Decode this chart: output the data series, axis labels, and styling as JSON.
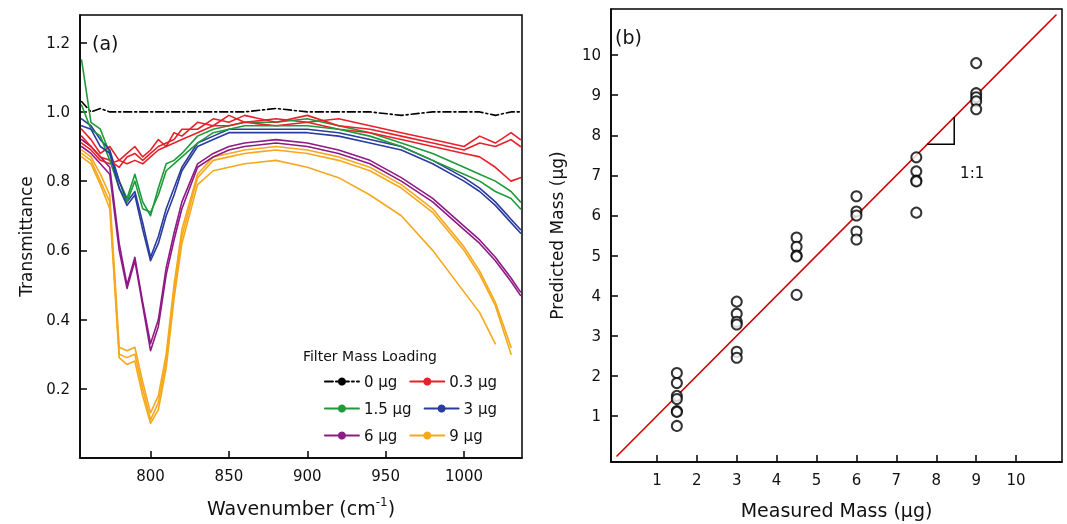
{
  "chart_data": [
    {
      "type": "line",
      "xlabel": "Wavenumber (cm$^{-1}$)",
      "ylabel": "Transmittance",
      "legend_title": "Filter Mass Loading",
      "annotations": [
        "(a)"
      ],
      "x": [
        756,
        762,
        768,
        774,
        780,
        785,
        790,
        795,
        800,
        805,
        810,
        815,
        820,
        830,
        840,
        850,
        860,
        880,
        900,
        920,
        940,
        960,
        980,
        1000,
        1010,
        1020,
        1030,
        1036
      ],
      "series": [
        {
          "name": "0 µg",
          "color": "#000000",
          "line_style": "dashed",
          "values": [
            1.03,
            1.0,
            1.01,
            1.0,
            1.0,
            1.0,
            1.0,
            1.0,
            1.0,
            1.0,
            1.0,
            1.0,
            1.0,
            1.0,
            1.0,
            1.0,
            1.0,
            1.01,
            1.0,
            1.0,
            1.0,
            0.99,
            1.0,
            1.0,
            1.0,
            0.99,
            1.0,
            1.0
          ]
        },
        {
          "name": "0.3 µg",
          "color": "#e8202a",
          "values": [
            0.95,
            0.92,
            0.88,
            0.9,
            0.86,
            0.88,
            0.9,
            0.87,
            0.89,
            0.92,
            0.9,
            0.94,
            0.93,
            0.97,
            0.96,
            0.99,
            0.97,
            0.98,
            0.97,
            0.98,
            0.96,
            0.94,
            0.92,
            0.9,
            0.93,
            0.91,
            0.94,
            0.92
          ]
        },
        {
          "name": "1.5 µg",
          "color": "#1f9a3a",
          "values": [
            1.15,
            0.97,
            0.95,
            0.88,
            0.8,
            0.75,
            0.82,
            0.74,
            0.7,
            0.78,
            0.85,
            0.86,
            0.88,
            0.93,
            0.95,
            0.96,
            0.97,
            0.97,
            0.98,
            0.96,
            0.94,
            0.91,
            0.88,
            0.84,
            0.82,
            0.8,
            0.77,
            0.74
          ]
        },
        {
          "name": "3 µg",
          "color": "#2a3c9e",
          "values": [
            0.98,
            0.96,
            0.92,
            0.89,
            0.8,
            0.74,
            0.77,
            0.68,
            0.58,
            0.64,
            0.72,
            0.78,
            0.84,
            0.91,
            0.93,
            0.95,
            0.95,
            0.95,
            0.95,
            0.94,
            0.92,
            0.9,
            0.86,
            0.81,
            0.78,
            0.74,
            0.69,
            0.66
          ]
        },
        {
          "name": "6 µg",
          "color": "#8e1a85",
          "values": [
            0.92,
            0.9,
            0.87,
            0.84,
            0.62,
            0.5,
            0.58,
            0.45,
            0.33,
            0.4,
            0.55,
            0.65,
            0.74,
            0.85,
            0.88,
            0.9,
            0.91,
            0.92,
            0.91,
            0.89,
            0.86,
            0.81,
            0.75,
            0.67,
            0.63,
            0.58,
            0.52,
            0.48
          ]
        },
        {
          "name": "9 µg",
          "color": "#f5a81c",
          "values": [
            0.89,
            0.87,
            0.82,
            0.76,
            0.32,
            0.31,
            0.32,
            0.22,
            0.13,
            0.18,
            0.3,
            0.5,
            0.66,
            0.82,
            0.87,
            0.88,
            0.89,
            0.9,
            0.89,
            0.87,
            0.84,
            0.79,
            0.72,
            0.61,
            0.54,
            0.45,
            0.32,
            null
          ]
        },
        {
          "color": "#e8202a",
          "values": [
            0.93,
            0.9,
            0.87,
            0.86,
            0.84,
            0.87,
            0.88,
            0.86,
            0.88,
            0.9,
            0.91,
            0.92,
            0.95,
            0.95,
            0.98,
            0.97,
            0.99,
            0.97,
            0.99,
            0.96,
            0.95,
            0.93,
            0.91,
            0.89,
            0.91,
            0.9,
            0.92,
            0.9
          ]
        },
        {
          "color": "#e8202a",
          "values": [
            0.91,
            0.89,
            0.86,
            0.85,
            0.86,
            0.85,
            0.86,
            0.85,
            0.87,
            0.89,
            0.9,
            0.91,
            0.92,
            0.94,
            0.96,
            0.96,
            0.97,
            0.96,
            0.97,
            0.95,
            0.94,
            0.92,
            0.9,
            0.88,
            0.87,
            0.84,
            0.8,
            0.81
          ]
        },
        {
          "color": "#1f9a3a",
          "values": [
            1.02,
            0.95,
            0.93,
            0.86,
            0.78,
            0.74,
            0.8,
            0.72,
            0.71,
            0.76,
            0.83,
            0.85,
            0.87,
            0.91,
            0.94,
            0.95,
            0.96,
            0.96,
            0.96,
            0.95,
            0.93,
            0.9,
            0.86,
            0.82,
            0.8,
            0.77,
            0.75,
            0.72
          ]
        },
        {
          "color": "#2a3c9e",
          "values": [
            0.96,
            0.95,
            0.9,
            0.88,
            0.78,
            0.73,
            0.76,
            0.66,
            0.57,
            0.62,
            0.7,
            0.76,
            0.83,
            0.9,
            0.92,
            0.94,
            0.94,
            0.94,
            0.94,
            0.93,
            0.91,
            0.89,
            0.85,
            0.8,
            0.77,
            0.73,
            0.68,
            0.65
          ]
        },
        {
          "color": "#8e1a85",
          "values": [
            0.9,
            0.88,
            0.85,
            0.82,
            0.6,
            0.49,
            0.57,
            0.44,
            0.31,
            0.38,
            0.53,
            0.63,
            0.72,
            0.84,
            0.87,
            0.89,
            0.9,
            0.91,
            0.9,
            0.88,
            0.85,
            0.8,
            0.74,
            0.66,
            0.62,
            0.57,
            0.51,
            0.47
          ]
        },
        {
          "color": "#f5a81c",
          "values": [
            0.88,
            0.86,
            0.8,
            0.74,
            0.3,
            0.29,
            0.3,
            0.2,
            0.11,
            0.16,
            0.28,
            0.48,
            0.64,
            0.81,
            0.86,
            0.87,
            0.88,
            0.89,
            0.88,
            0.86,
            0.83,
            0.78,
            0.71,
            0.6,
            0.53,
            0.44,
            0.3,
            null
          ]
        },
        {
          "color": "#f5a81c",
          "values": [
            0.87,
            0.85,
            0.79,
            0.72,
            0.29,
            0.27,
            0.28,
            0.18,
            0.1,
            0.14,
            0.26,
            0.46,
            0.62,
            0.79,
            0.83,
            0.84,
            0.85,
            0.86,
            0.84,
            0.81,
            0.76,
            0.7,
            0.6,
            0.48,
            0.42,
            0.33,
            null,
            null
          ]
        }
      ],
      "xlim": [
        755,
        1037
      ],
      "xticks": [
        800,
        850,
        900,
        950,
        1000
      ],
      "ylim": [
        0,
        1.28
      ],
      "yticks": [
        0.2,
        0.4,
        0.6,
        0.8,
        {
          "value": 1.0,
          "label": "1.0"
        },
        1.2
      ],
      "grid": false,
      "legend": "bottom right",
      "marker": "none",
      "line_style": "solid"
    },
    {
      "type": "scatter",
      "xlabel": "Measured Mass (µg)",
      "ylabel": "Predicted Mass (µg)",
      "annotations": [
        "(b)",
        "1:1"
      ],
      "series": [
        {
          "color": "#000000",
          "marker": "circle",
          "x": [
            1.5,
            1.5,
            1.5,
            1.5,
            1.5,
            1.5,
            1.5,
            3,
            3,
            3,
            3,
            3,
            3,
            4.5,
            4.5,
            4.5,
            4.5,
            4.5,
            6,
            6,
            6,
            6,
            6,
            7.5,
            7.5,
            7.5,
            7.5,
            7.5,
            9,
            9,
            9,
            9,
            9
          ],
          "values": [
            2.07,
            1.82,
            1.5,
            1.42,
            1.12,
            1.1,
            0.75,
            3.85,
            3.55,
            3.35,
            3.28,
            2.6,
            2.45,
            5.45,
            5.22,
            5.0,
            4.98,
            4.02,
            6.48,
            6.1,
            6.0,
            5.6,
            5.4,
            7.45,
            7.1,
            6.87,
            6.85,
            6.07,
            9.8,
            9.05,
            8.95,
            8.85,
            8.65
          ]
        },
        {
          "type": "line",
          "color": "#d40000",
          "marker": "none",
          "line_style": "solid",
          "x": [
            0,
            11
          ],
          "values": [
            0,
            11
          ]
        }
      ],
      "xlim": [
        -0.15,
        11.15
      ],
      "xticks": [
        1,
        2,
        3,
        4,
        5,
        6,
        7,
        8,
        9,
        10
      ],
      "ylim": [
        -0.15,
        11.15
      ],
      "yticks": [
        1,
        2,
        3,
        4,
        5,
        6,
        7,
        8,
        9,
        10
      ],
      "grid": false,
      "legend": false
    }
  ]
}
